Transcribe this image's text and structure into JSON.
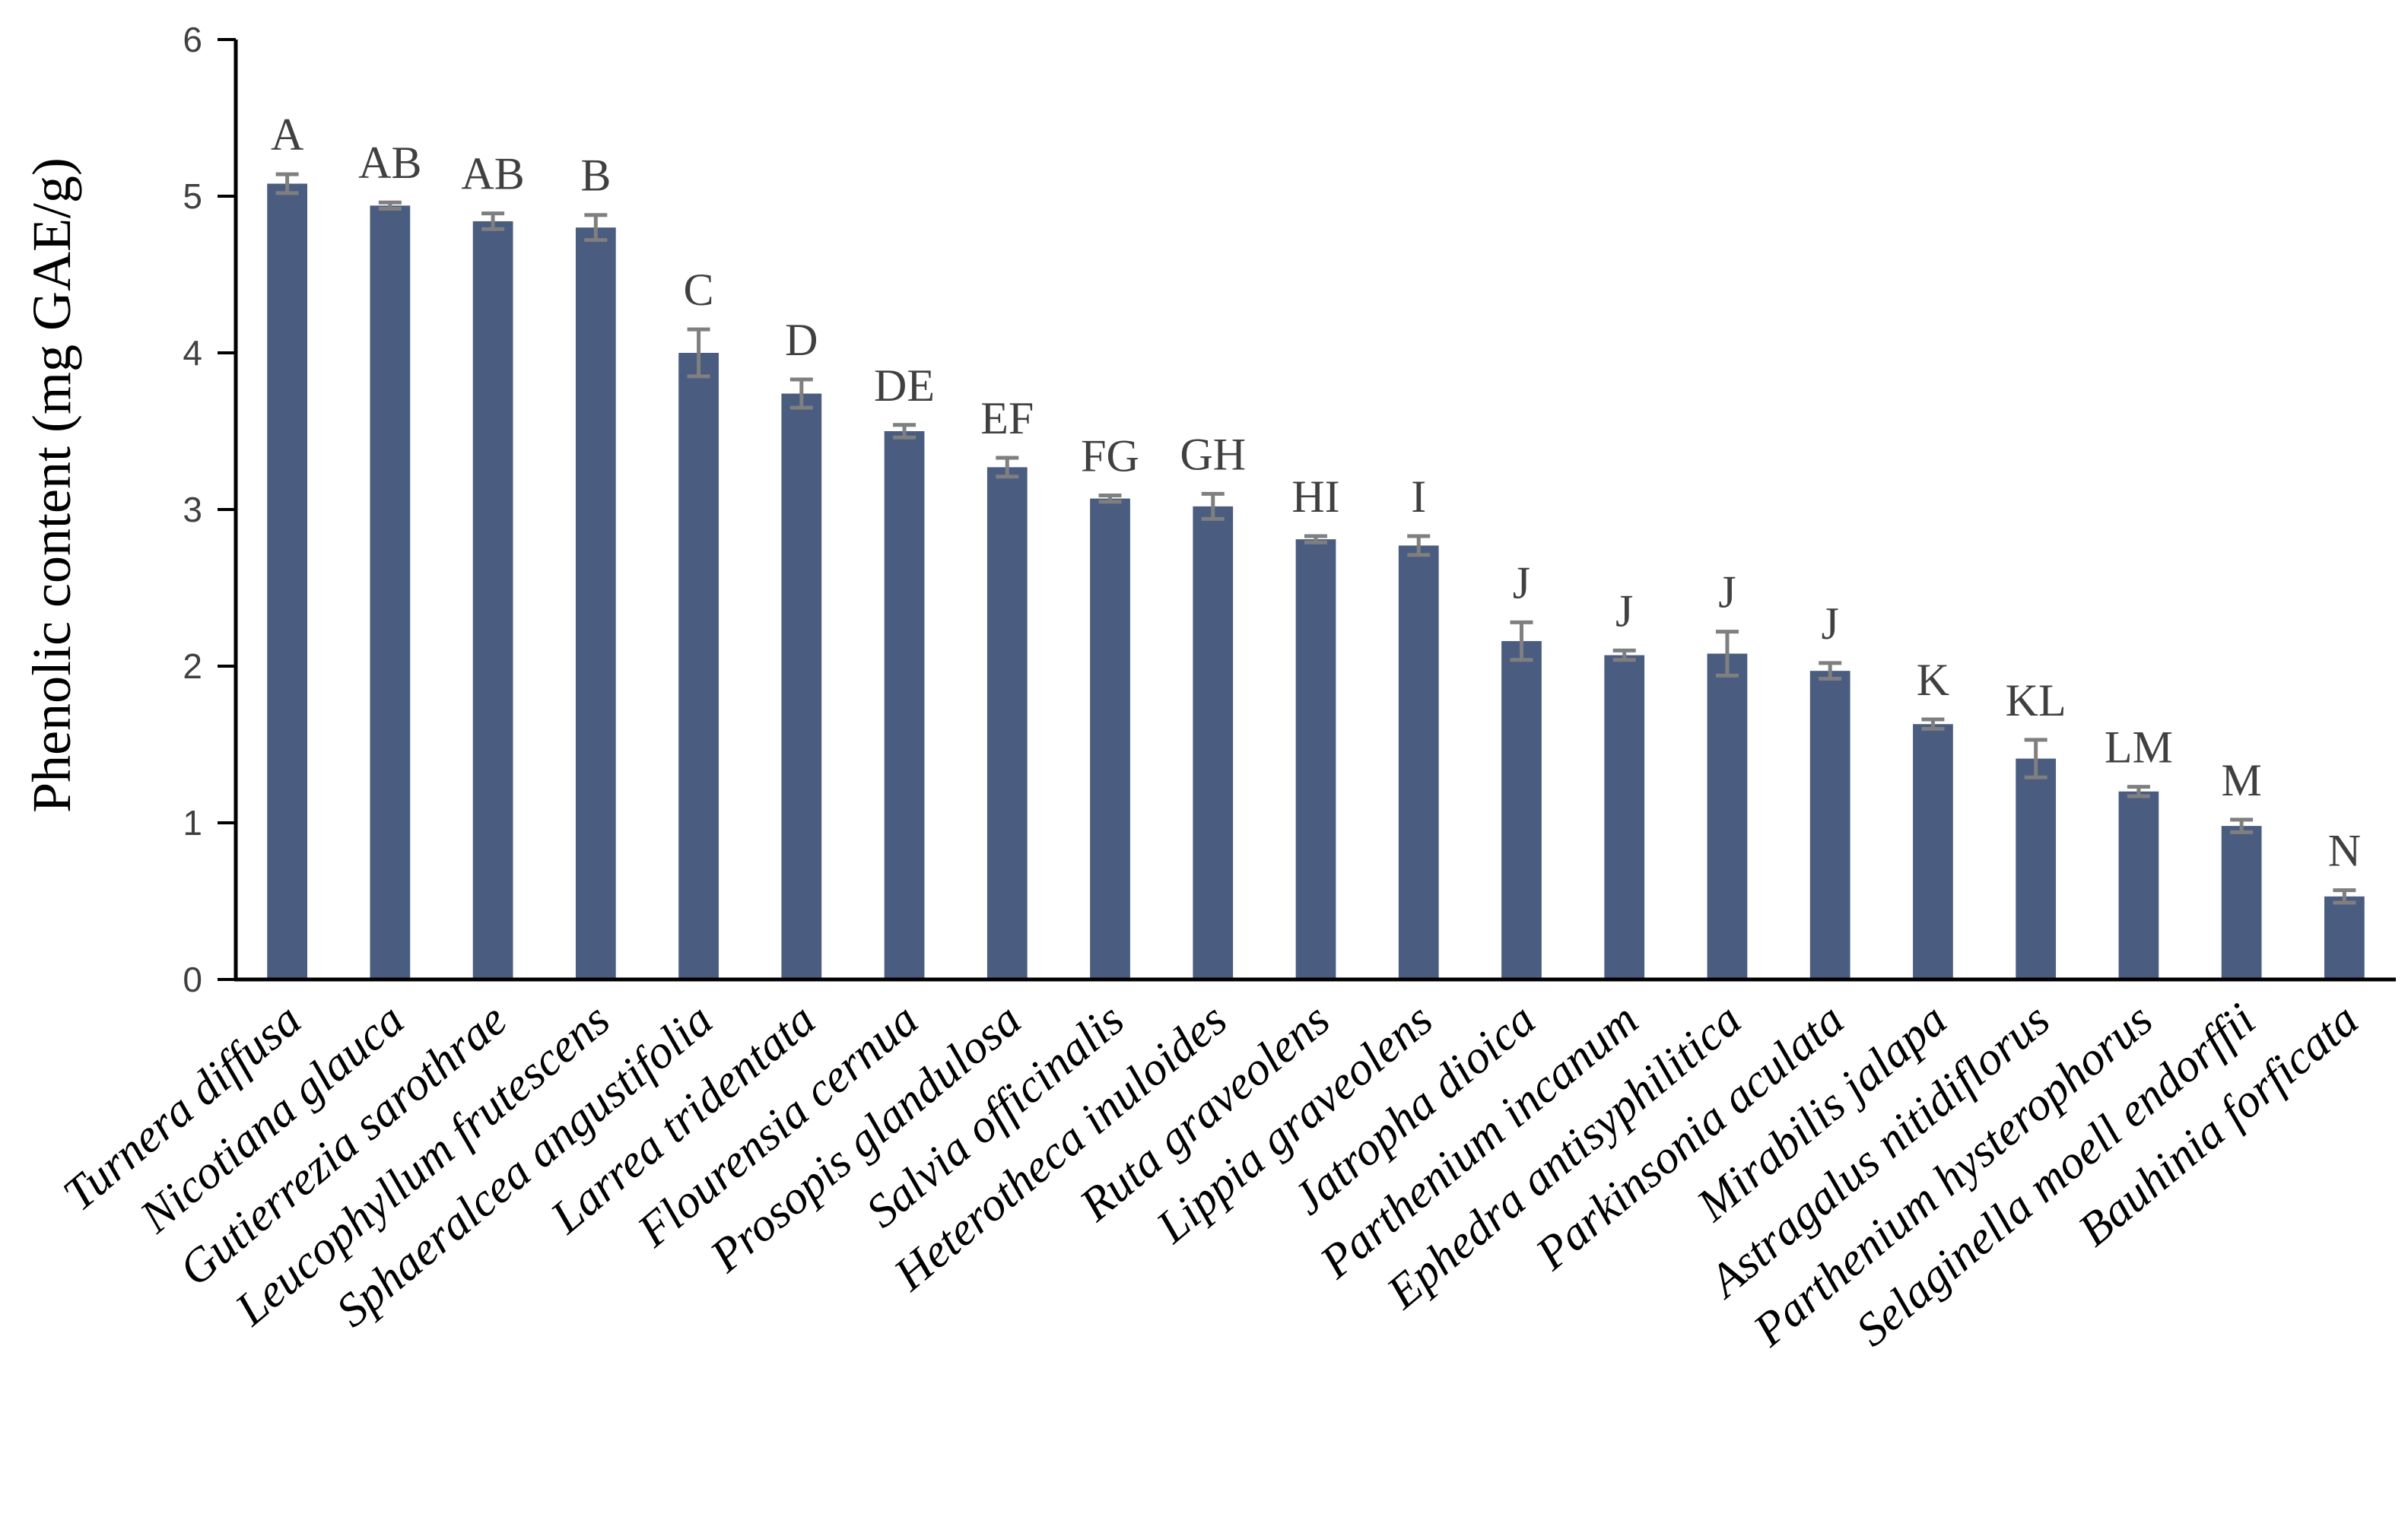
{
  "chart_data": {
    "type": "bar",
    "ylabel": "Phenolic content (mg GAE/g)",
    "xlabel": "",
    "ylim": [
      0,
      6
    ],
    "yticks": [
      0,
      1,
      2,
      3,
      4,
      5,
      6
    ],
    "grid": false,
    "colors": {
      "bar": "#4a5c80",
      "error": "#7f7f7f",
      "axis": "#000000"
    },
    "categories": [
      "Turnera diffusa",
      "Nicotiana glauca",
      "Gutierrezia sarothrae",
      "Leucophyllum frutescens",
      "Sphaeralcea angustifolia",
      "Larrea tridentata",
      "Flourensia cernua",
      "Prosopis glandulosa",
      "Salvia officinalis",
      "Heterotheca inuloides",
      "Ruta graveolens",
      "Lippia graveolens",
      "Jatropha dioica",
      "Parthenium incanum",
      "Ephedra antisyphilitica",
      "Parkinsonia aculata",
      "Mirabilis jalapa",
      "Astragalus nitidiflorus",
      "Parthenium hysterophorus",
      "Selaginella moell endorffii",
      "Bauhinia forficata"
    ],
    "values": [
      5.08,
      4.94,
      4.84,
      4.8,
      4.0,
      3.74,
      3.5,
      3.27,
      3.07,
      3.02,
      2.81,
      2.77,
      2.16,
      2.07,
      2.08,
      1.97,
      1.63,
      1.41,
      1.2,
      0.98,
      0.53
    ],
    "errors": [
      0.06,
      0.02,
      0.05,
      0.08,
      0.15,
      0.09,
      0.04,
      0.06,
      0.02,
      0.08,
      0.02,
      0.06,
      0.12,
      0.03,
      0.14,
      0.05,
      0.03,
      0.12,
      0.03,
      0.04,
      0.04
    ],
    "significance": [
      "A",
      "AB",
      "AB",
      "B",
      "C",
      "D",
      "DE",
      "EF",
      "FG",
      "GH",
      "HI",
      "I",
      "J",
      "J",
      "J",
      "J",
      "K",
      "KL",
      "LM",
      "M",
      "N"
    ]
  }
}
